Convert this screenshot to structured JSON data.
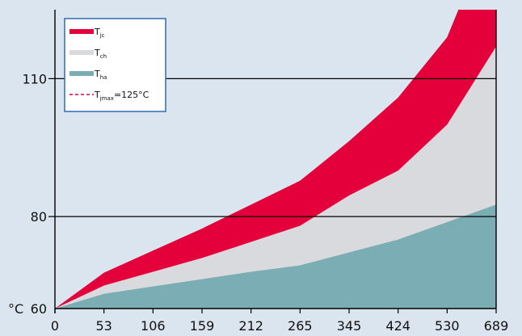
{
  "chart_data": {
    "type": "area",
    "stacked_bands": true,
    "x": [
      "0",
      "53",
      "106",
      "159",
      "212",
      "265",
      "345",
      "424",
      "530",
      "689"
    ],
    "y_unit_label": "°C",
    "ylim": [
      60,
      125
    ],
    "y_ticks": [
      {
        "value": 60,
        "label": "60"
      },
      {
        "value": 80,
        "label": "80"
      },
      {
        "value": 110,
        "label": "110"
      }
    ],
    "xlabel": "",
    "ylabel": "",
    "title": "",
    "grid": {
      "horizontal_lines_at": [
        80,
        110
      ],
      "vertical": false
    },
    "legend_position": "top-left",
    "series": [
      {
        "key": "ha",
        "legend_main": "T",
        "legend_sub": "ha",
        "color": "#7aaeb4",
        "values": [
          60,
          63.2,
          64.8,
          66.4,
          68.0,
          69.4,
          72.2,
          75.0,
          78.8,
          82.6
        ]
      },
      {
        "key": "ch",
        "legend_main": "T",
        "legend_sub": "ch",
        "color": "#d9dadd",
        "values": [
          60,
          65.0,
          68.0,
          71.0,
          74.5,
          78.0,
          84.6,
          90.0,
          100.0,
          117.0
        ]
      },
      {
        "key": "jc",
        "legend_main": "T",
        "legend_sub": "jc",
        "color": "#e4003a",
        "values": [
          60,
          67.8,
          72.6,
          77.4,
          82.6,
          87.8,
          96.4,
          105.9,
          119.0,
          145.0
        ]
      }
    ],
    "reference_line": {
      "legend_main": "T",
      "legend_sub": "jmax",
      "legend_suffix": "=125°C",
      "value": 125,
      "color": "#e4003a",
      "style": "dashed"
    }
  }
}
